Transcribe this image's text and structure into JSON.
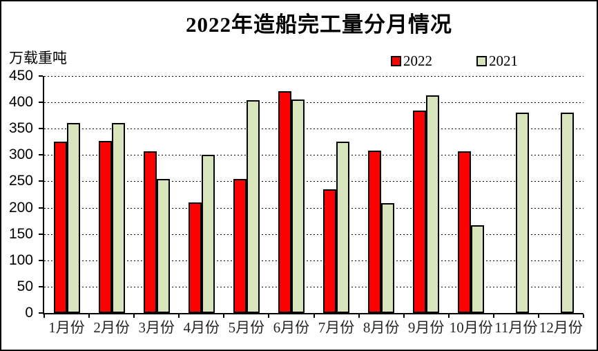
{
  "chart_data": {
    "type": "bar",
    "title": "2022年造船完工量分月情况",
    "unit_label": "万载重吨",
    "categories": [
      "1月份",
      "2月份",
      "3月份",
      "4月份",
      "5月份",
      "6月份",
      "7月份",
      "8月份",
      "9月份",
      "10月份",
      "11月份",
      "12月份"
    ],
    "series": [
      {
        "name": "2022",
        "color": "#FF0000",
        "values": [
          325,
          327,
          307,
          210,
          255,
          421,
          235,
          308,
          385,
          307,
          null,
          null
        ]
      },
      {
        "name": "2021",
        "color": "#D8E4BC",
        "values": [
          361,
          361,
          255,
          301,
          404,
          405,
          326,
          208,
          413,
          167,
          380,
          381
        ]
      }
    ],
    "ylim": [
      0,
      450
    ],
    "ytick_step": 50,
    "yticks": [
      450,
      400,
      350,
      300,
      250,
      200,
      150,
      100,
      50,
      0
    ],
    "grid": true,
    "legend_position": "top-right",
    "colors": {
      "bar_border": "#000000",
      "frame_border": "#000000",
      "background": "#FFFFFF",
      "gridline": "#000000"
    }
  }
}
